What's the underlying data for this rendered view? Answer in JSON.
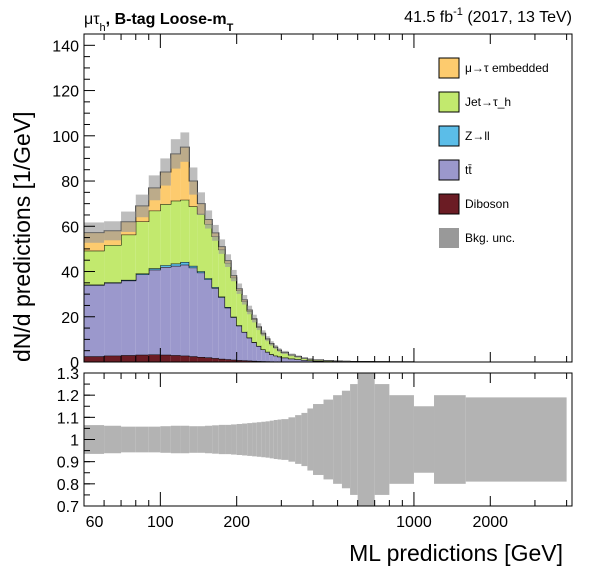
{
  "header": {
    "channel": "μτ",
    "channel_sub": "h",
    "category": ", B-tag Loose-m",
    "category_sub": "T",
    "lumi_value": "41.5 fb",
    "lumi_exp": "-1",
    "lumi_run": " (2017, 13 TeV)"
  },
  "chart_data": [
    {
      "type": "area",
      "stacked": true,
      "xlabel": "ML predictions [GeV]",
      "ylabel": "dN/d predictions [1/GeV]",
      "xscale": "log",
      "xlim": [
        50,
        4200
      ],
      "ylim": [
        0,
        145
      ],
      "yticks": [
        0,
        20,
        40,
        60,
        80,
        100,
        120,
        140
      ],
      "xtick_labels": [
        "100",
        "200",
        "1000",
        "2000"
      ],
      "grid": false,
      "legend_position": "top-right",
      "bin_edges": [
        50,
        60,
        70,
        80,
        90,
        100,
        110,
        120,
        130,
        140,
        150,
        160,
        170,
        180,
        190,
        200,
        210,
        220,
        230,
        240,
        250,
        260,
        270,
        280,
        290,
        300,
        320,
        340,
        360,
        380,
        400,
        440,
        480,
        520,
        560,
        600,
        700,
        800,
        1000,
        1200,
        1600,
        4000
      ],
      "series": [
        {
          "name": "Diboson",
          "color": "#6b1c24",
          "values": [
            2.5,
            2.8,
            3.0,
            3.2,
            3.3,
            3.2,
            3.0,
            2.8,
            2.5,
            2.2,
            2.0,
            1.7,
            1.4,
            1.2,
            1.0,
            0.8,
            0.7,
            0.6,
            0.5,
            0.4,
            0.35,
            0.3,
            0.25,
            0.2,
            0.2,
            0.15,
            0.1,
            0.1,
            0.08,
            0.06,
            0.05,
            0.04,
            0.03,
            0.02,
            0.02,
            0.01,
            0.01,
            0,
            0,
            0,
            0
          ]
        },
        {
          "name": "tt̄",
          "color": "#9b98cc",
          "values": [
            31.5,
            32.2,
            33.0,
            35.5,
            37.5,
            38.8,
            39.5,
            40.2,
            39.2,
            37.3,
            34.5,
            31.0,
            27.2,
            22.8,
            18.8,
            15.2,
            12.5,
            10.1,
            8.2,
            6.6,
            5.2,
            4.2,
            3.2,
            2.6,
            2.2,
            1.8,
            1.4,
            1.1,
            0.8,
            0.6,
            0.45,
            0.3,
            0.2,
            0.15,
            0.1,
            0.05,
            0.03,
            0.02,
            0.01,
            0,
            0
          ]
        },
        {
          "name": "Z→ll",
          "color": "#5bbde8",
          "values": [
            0.2,
            0.2,
            0.3,
            0.4,
            0.6,
            0.8,
            1.0,
            1.2,
            0.8,
            0.6,
            0.5,
            0.4,
            0.3,
            0.3,
            0.2,
            0.2,
            0.1,
            0.1,
            0.1,
            0.1,
            0,
            0,
            0,
            0,
            0,
            0,
            0,
            0,
            0,
            0,
            0,
            0,
            0,
            0,
            0,
            0,
            0,
            0,
            0,
            0,
            0
          ]
        },
        {
          "name": "Jet→τ_h",
          "color": "#c2e96e",
          "values": [
            15.0,
            16.5,
            20.0,
            23.0,
            25.5,
            27.0,
            27.8,
            27.5,
            26.3,
            25.4,
            24.0,
            22.4,
            20.8,
            19.5,
            17.3,
            15.4,
            13.5,
            11.7,
            10.0,
            8.2,
            6.9,
            5.6,
            4.6,
            3.7,
            2.8,
            2.2,
            1.6,
            1.2,
            0.8,
            0.6,
            0.4,
            0.3,
            0.2,
            0.12,
            0.08,
            0.05,
            0.03,
            0.02,
            0.01,
            0.01,
            0
          ]
        },
        {
          "name": "μ→τ embedded",
          "color": "#fdcb6e",
          "values": [
            8.0,
            6.3,
            5.7,
            6.9,
            10.1,
            14.2,
            20.7,
            23.3,
            11.2,
            4.5,
            2.0,
            1.6,
            1.3,
            1.0,
            0.9,
            0.8,
            0.7,
            0.5,
            0.4,
            0.3,
            0.25,
            0.2,
            0.15,
            0.1,
            0.1,
            0.08,
            0.05,
            0.04,
            0.03,
            0.02,
            0.02,
            0.01,
            0.01,
            0.01,
            0,
            0,
            0,
            0,
            0,
            0,
            0
          ]
        }
      ],
      "uncertainty": {
        "name": "Bkg. unc.",
        "color": "#999999",
        "values": [
          4.5,
          4.2,
          4.5,
          5.0,
          5.5,
          6.0,
          6.5,
          6.5,
          6.0,
          5.0,
          4.0,
          3.5,
          3.2,
          2.8,
          2.5,
          2.3,
          2.1,
          1.9,
          1.7,
          1.5,
          1.3,
          1.1,
          1.0,
          0.9,
          0.8,
          0.7,
          0.6,
          0.5,
          0.4,
          0.3,
          0.25,
          0.2,
          0.15,
          0.1,
          0.08,
          0.05,
          0.04,
          0.03,
          0.02,
          0.01,
          0.01
        ]
      }
    },
    {
      "type": "area",
      "xlabel": "ML predictions [GeV]",
      "ylabel": "",
      "xscale": "log",
      "xlim": [
        50,
        4200
      ],
      "ylim": [
        0.7,
        1.3
      ],
      "yticks": [
        0.7,
        0.8,
        0.9,
        1.0,
        1.1,
        1.2,
        1.3
      ],
      "ytick_labels": [
        "0.7",
        "0.8",
        "0.9",
        "1",
        "1.1",
        "1.2",
        "1.3"
      ],
      "xtick_labels": [
        "100",
        "200",
        "1000",
        "2000"
      ],
      "series": [
        {
          "name": "Bkg. unc.",
          "color": "#b3b3b3",
          "relative_uncertainty": [
            0.065,
            0.062,
            0.058,
            0.058,
            0.058,
            0.06,
            0.062,
            0.062,
            0.06,
            0.06,
            0.062,
            0.064,
            0.066,
            0.066,
            0.068,
            0.07,
            0.072,
            0.074,
            0.076,
            0.078,
            0.08,
            0.082,
            0.085,
            0.088,
            0.09,
            0.092,
            0.1,
            0.11,
            0.12,
            0.14,
            0.16,
            0.18,
            0.2,
            0.22,
            0.25,
            0.3,
            0.25,
            0.2,
            0.15,
            0.2,
            0.19
          ]
        }
      ]
    }
  ]
}
